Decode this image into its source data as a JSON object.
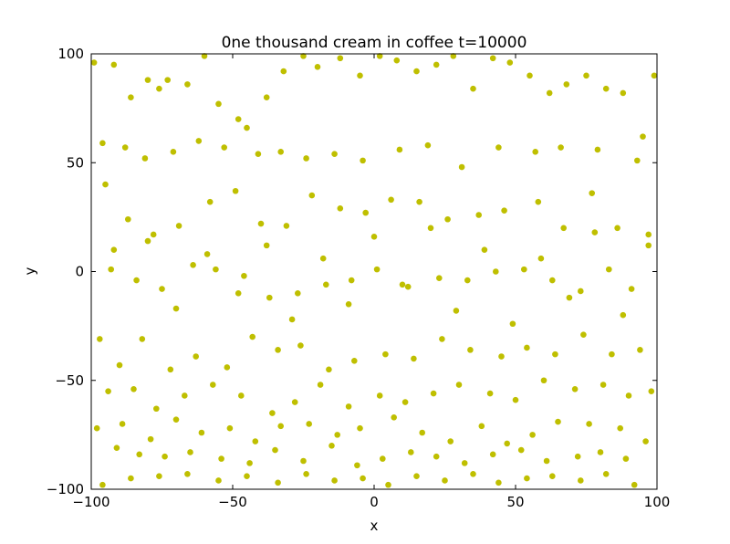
{
  "chart_data": {
    "type": "scatter",
    "title": "0ne thousand cream in coffee t=10000",
    "xlabel": "x",
    "ylabel": "y",
    "xlim": [
      -100,
      100
    ],
    "ylim": [
      -100,
      100
    ],
    "xticks": [
      -100,
      -50,
      0,
      50,
      100
    ],
    "yticks": [
      -100,
      -50,
      0,
      50,
      100
    ],
    "xtick_labels": [
      "−100",
      "−50",
      "0",
      "50",
      "100"
    ],
    "ytick_labels": [
      "−100",
      "−50",
      "0",
      "50",
      "100"
    ],
    "grid": false,
    "marker_color": "#bfbf00",
    "series": [
      {
        "x": [
          -99,
          -92,
          -86,
          -80,
          -76,
          -73,
          -66,
          -60,
          -55,
          -48,
          -45,
          -38,
          -32,
          -25,
          -20,
          -12,
          -5,
          2,
          8,
          15,
          22,
          28,
          35,
          42,
          48,
          55,
          62,
          68,
          75,
          82,
          88,
          95,
          99,
          -96,
          -88,
          -81,
          -71,
          -62,
          -53,
          -41,
          -33,
          -24,
          -14,
          -4,
          9,
          19,
          31,
          44,
          57,
          66,
          79,
          93,
          -95,
          -87,
          -78,
          -69,
          -58,
          -49,
          -40,
          -31,
          -22,
          -12,
          -3,
          6,
          16,
          26,
          37,
          46,
          58,
          67,
          77,
          86,
          97,
          -93,
          -84,
          -75,
          -64,
          -56,
          -46,
          -37,
          -27,
          -17,
          -8,
          1,
          12,
          23,
          33,
          43,
          53,
          63,
          73,
          83,
          91,
          -97,
          -90,
          -82,
          -72,
          -63,
          -52,
          -43,
          -34,
          -26,
          -16,
          -7,
          4,
          14,
          24,
          34,
          45,
          54,
          64,
          74,
          84,
          94,
          -94,
          -85,
          -77,
          -67,
          -57,
          -47,
          -36,
          -28,
          -19,
          -9,
          2,
          11,
          21,
          30,
          41,
          50,
          60,
          71,
          81,
          90,
          98,
          -98,
          -89,
          -79,
          -70,
          -61,
          -51,
          -42,
          -33,
          -23,
          -13,
          -5,
          7,
          17,
          27,
          38,
          47,
          56,
          65,
          76,
          87,
          96,
          -91,
          -83,
          -74,
          -65,
          -54,
          -44,
          -35,
          -25,
          -15,
          -6,
          3,
          13,
          22,
          32,
          42,
          52,
          61,
          72,
          80,
          89,
          -96,
          -86,
          -76,
          -66,
          -55,
          -45,
          -34,
          -24,
          -14,
          -4,
          5,
          15,
          25,
          35,
          44,
          54,
          63,
          73,
          82,
          92,
          -92,
          -80,
          -70,
          -59,
          -48,
          -38,
          -29,
          -18,
          -9,
          0,
          10,
          20,
          29,
          39,
          49,
          59,
          69,
          78,
          88,
          97
        ],
        "y": [
          96,
          95,
          80,
          88,
          84,
          88,
          86,
          99,
          77,
          70,
          66,
          80,
          92,
          99,
          94,
          98,
          90,
          99,
          97,
          92,
          95,
          99,
          84,
          98,
          96,
          90,
          82,
          86,
          90,
          84,
          82,
          62,
          90,
          59,
          57,
          52,
          55,
          60,
          57,
          54,
          55,
          52,
          54,
          51,
          56,
          58,
          48,
          57,
          55,
          57,
          56,
          51,
          40,
          24,
          17,
          21,
          32,
          37,
          22,
          21,
          35,
          29,
          27,
          33,
          32,
          24,
          26,
          28,
          32,
          20,
          36,
          20,
          17,
          1,
          -4,
          -8,
          3,
          1,
          -2,
          -12,
          -10,
          -6,
          -4,
          1,
          -7,
          -3,
          -4,
          0,
          1,
          -4,
          -9,
          1,
          -8,
          -31,
          -43,
          -31,
          -45,
          -39,
          -44,
          -30,
          -36,
          -34,
          -45,
          -41,
          -38,
          -40,
          -31,
          -36,
          -39,
          -35,
          -38,
          -29,
          -38,
          -36,
          -55,
          -54,
          -63,
          -57,
          -52,
          -57,
          -65,
          -60,
          -52,
          -62,
          -57,
          -60,
          -56,
          -52,
          -56,
          -59,
          -50,
          -54,
          -52,
          -57,
          -55,
          -72,
          -70,
          -77,
          -68,
          -74,
          -72,
          -78,
          -71,
          -70,
          -75,
          -72,
          -67,
          -74,
          -78,
          -71,
          -79,
          -75,
          -69,
          -70,
          -72,
          -78,
          -81,
          -84,
          -85,
          -83,
          -86,
          -88,
          -82,
          -87,
          -80,
          -89,
          -86,
          -83,
          -85,
          -88,
          -84,
          -82,
          -87,
          -85,
          -83,
          -86,
          -98,
          -95,
          -94,
          -93,
          -96,
          -94,
          -97,
          -93,
          -96,
          -95,
          -98,
          -94,
          -96,
          -93,
          -97,
          -95,
          -94,
          -96,
          -93,
          -98,
          10,
          14,
          -17,
          8,
          -10,
          12,
          -22,
          6,
          -15,
          16,
          -6,
          20,
          -18,
          10,
          -24,
          6,
          -12,
          18,
          -20,
          12
        ]
      }
    ]
  }
}
